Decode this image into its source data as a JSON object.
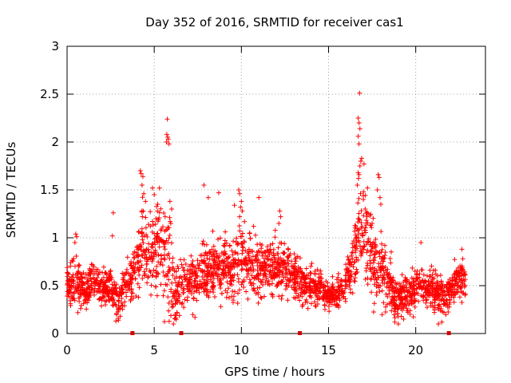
{
  "colors": {
    "marker": "#ff0000",
    "marker_dark": "#d40000",
    "grid": "#a0a0a0",
    "axis": "#000000"
  },
  "chart_data": {
    "type": "scatter",
    "title": "Day 352 of 2016, SRMTID for receiver cas1",
    "xlabel": "GPS time / hours",
    "ylabel": "SRMTID / TECUs",
    "xlim": [
      0,
      24
    ],
    "ylim": [
      0,
      3
    ],
    "x_ticks": [
      0,
      5,
      10,
      15,
      20
    ],
    "y_ticks": [
      0,
      0.5,
      1,
      1.5,
      2,
      2.5,
      3
    ],
    "x_tick_labels": [
      "0",
      "5",
      "10",
      "15",
      "20"
    ],
    "y_tick_labels": [
      "0",
      "0.5",
      "1",
      "1.5",
      "2",
      "2.5",
      "3"
    ],
    "grid": true,
    "marker": "plus",
    "gap_markers_x": [
      3.75,
      6.55,
      13.35,
      21.9
    ],
    "profile": [
      {
        "x": 0.0,
        "m": 0.5,
        "s": 0.12
      },
      {
        "x": 0.5,
        "m": 0.55,
        "s": 0.18
      },
      {
        "x": 1.0,
        "m": 0.42,
        "s": 0.1
      },
      {
        "x": 1.5,
        "m": 0.55,
        "s": 0.13
      },
      {
        "x": 2.0,
        "m": 0.45,
        "s": 0.11
      },
      {
        "x": 2.5,
        "m": 0.5,
        "s": 0.14
      },
      {
        "x": 2.9,
        "m": 0.32,
        "s": 0.12
      },
      {
        "x": 3.2,
        "m": 0.45,
        "s": 0.12
      },
      {
        "x": 3.8,
        "m": 0.62,
        "s": 0.15
      },
      {
        "x": 4.3,
        "m": 0.95,
        "s": 0.3
      },
      {
        "x": 4.8,
        "m": 0.9,
        "s": 0.35
      },
      {
        "x": 5.3,
        "m": 0.82,
        "s": 0.3
      },
      {
        "x": 5.8,
        "m": 0.75,
        "s": 0.4
      },
      {
        "x": 6.2,
        "m": 0.4,
        "s": 0.18
      },
      {
        "x": 6.8,
        "m": 0.55,
        "s": 0.15
      },
      {
        "x": 7.5,
        "m": 0.58,
        "s": 0.18
      },
      {
        "x": 8.5,
        "m": 0.68,
        "s": 0.2
      },
      {
        "x": 9.5,
        "m": 0.68,
        "s": 0.2
      },
      {
        "x": 10.0,
        "m": 0.78,
        "s": 0.25
      },
      {
        "x": 11.0,
        "m": 0.65,
        "s": 0.2
      },
      {
        "x": 12.0,
        "m": 0.7,
        "s": 0.2
      },
      {
        "x": 12.8,
        "m": 0.65,
        "s": 0.16
      },
      {
        "x": 13.5,
        "m": 0.5,
        "s": 0.14
      },
      {
        "x": 14.3,
        "m": 0.5,
        "s": 0.12
      },
      {
        "x": 15.0,
        "m": 0.38,
        "s": 0.08
      },
      {
        "x": 15.8,
        "m": 0.48,
        "s": 0.12
      },
      {
        "x": 16.3,
        "m": 0.7,
        "s": 0.2
      },
      {
        "x": 16.8,
        "m": 1.05,
        "s": 0.35
      },
      {
        "x": 17.2,
        "m": 1.1,
        "s": 0.35
      },
      {
        "x": 17.6,
        "m": 0.7,
        "s": 0.25
      },
      {
        "x": 18.2,
        "m": 0.65,
        "s": 0.25
      },
      {
        "x": 18.8,
        "m": 0.38,
        "s": 0.14
      },
      {
        "x": 19.5,
        "m": 0.4,
        "s": 0.14
      },
      {
        "x": 20.3,
        "m": 0.52,
        "s": 0.14
      },
      {
        "x": 21.0,
        "m": 0.45,
        "s": 0.14
      },
      {
        "x": 21.7,
        "m": 0.38,
        "s": 0.12
      },
      {
        "x": 22.3,
        "m": 0.55,
        "s": 0.13
      },
      {
        "x": 22.8,
        "m": 0.55,
        "s": 0.12
      }
    ],
    "spikes": [
      {
        "x": 0.5,
        "y": 1.04
      },
      {
        "x": 0.55,
        "y": 1.01
      },
      {
        "x": 0.45,
        "y": 0.95
      },
      {
        "x": 2.65,
        "y": 1.26
      },
      {
        "x": 2.6,
        "y": 1.02
      },
      {
        "x": 4.2,
        "y": 1.7
      },
      {
        "x": 4.25,
        "y": 1.67
      },
      {
        "x": 4.35,
        "y": 1.64
      },
      {
        "x": 4.3,
        "y": 1.55
      },
      {
        "x": 4.4,
        "y": 1.46
      },
      {
        "x": 4.5,
        "y": 1.38
      },
      {
        "x": 4.9,
        "y": 1.52
      },
      {
        "x": 5.0,
        "y": 1.45
      },
      {
        "x": 5.2,
        "y": 1.35
      },
      {
        "x": 5.3,
        "y": 1.52
      },
      {
        "x": 5.1,
        "y": 1.2
      },
      {
        "x": 5.75,
        "y": 2.24
      },
      {
        "x": 5.72,
        "y": 2.08
      },
      {
        "x": 5.78,
        "y": 2.05
      },
      {
        "x": 5.8,
        "y": 2.03
      },
      {
        "x": 5.7,
        "y": 2.0
      },
      {
        "x": 5.85,
        "y": 1.98
      },
      {
        "x": 5.9,
        "y": 1.38
      },
      {
        "x": 6.0,
        "y": 1.3
      },
      {
        "x": 5.95,
        "y": 1.15
      },
      {
        "x": 6.1,
        "y": 0.1
      },
      {
        "x": 6.2,
        "y": 0.2
      },
      {
        "x": 6.3,
        "y": 0.22
      },
      {
        "x": 2.8,
        "y": 0.13
      },
      {
        "x": 2.95,
        "y": 0.14
      },
      {
        "x": 3.05,
        "y": 0.18
      },
      {
        "x": 7.85,
        "y": 1.55
      },
      {
        "x": 8.1,
        "y": 1.42
      },
      {
        "x": 8.7,
        "y": 1.47
      },
      {
        "x": 9.6,
        "y": 1.34
      },
      {
        "x": 9.85,
        "y": 1.5
      },
      {
        "x": 9.9,
        "y": 1.46
      },
      {
        "x": 10.0,
        "y": 1.38
      },
      {
        "x": 9.95,
        "y": 1.32
      },
      {
        "x": 10.05,
        "y": 1.28
      },
      {
        "x": 9.9,
        "y": 1.22
      },
      {
        "x": 11.0,
        "y": 1.42
      },
      {
        "x": 10.7,
        "y": 1.12
      },
      {
        "x": 12.2,
        "y": 1.28
      },
      {
        "x": 12.25,
        "y": 1.22
      },
      {
        "x": 12.15,
        "y": 1.15
      },
      {
        "x": 16.7,
        "y": 2.25
      },
      {
        "x": 16.75,
        "y": 2.2
      },
      {
        "x": 16.8,
        "y": 2.14
      },
      {
        "x": 16.7,
        "y": 2.06
      },
      {
        "x": 16.75,
        "y": 1.98
      },
      {
        "x": 16.85,
        "y": 1.8
      },
      {
        "x": 16.9,
        "y": 1.83
      },
      {
        "x": 16.8,
        "y": 1.75
      },
      {
        "x": 16.7,
        "y": 1.68
      },
      {
        "x": 16.72,
        "y": 1.62
      },
      {
        "x": 17.0,
        "y": 1.48
      },
      {
        "x": 16.65,
        "y": 1.55
      },
      {
        "x": 16.78,
        "y": 2.51
      },
      {
        "x": 17.0,
        "y": 1.4
      },
      {
        "x": 17.1,
        "y": 1.3
      },
      {
        "x": 17.2,
        "y": 1.22
      },
      {
        "x": 17.5,
        "y": 1.15
      },
      {
        "x": 17.85,
        "y": 1.66
      },
      {
        "x": 17.9,
        "y": 1.63
      },
      {
        "x": 17.8,
        "y": 1.5
      },
      {
        "x": 17.95,
        "y": 1.42
      },
      {
        "x": 18.0,
        "y": 1.35
      },
      {
        "x": 18.8,
        "y": 0.12
      },
      {
        "x": 19.0,
        "y": 0.1
      },
      {
        "x": 19.3,
        "y": 0.15
      },
      {
        "x": 20.3,
        "y": 0.95
      },
      {
        "x": 21.3,
        "y": 0.1
      },
      {
        "x": 21.5,
        "y": 0.12
      },
      {
        "x": 22.65,
        "y": 0.88
      },
      {
        "x": 22.7,
        "y": 0.78
      }
    ]
  }
}
